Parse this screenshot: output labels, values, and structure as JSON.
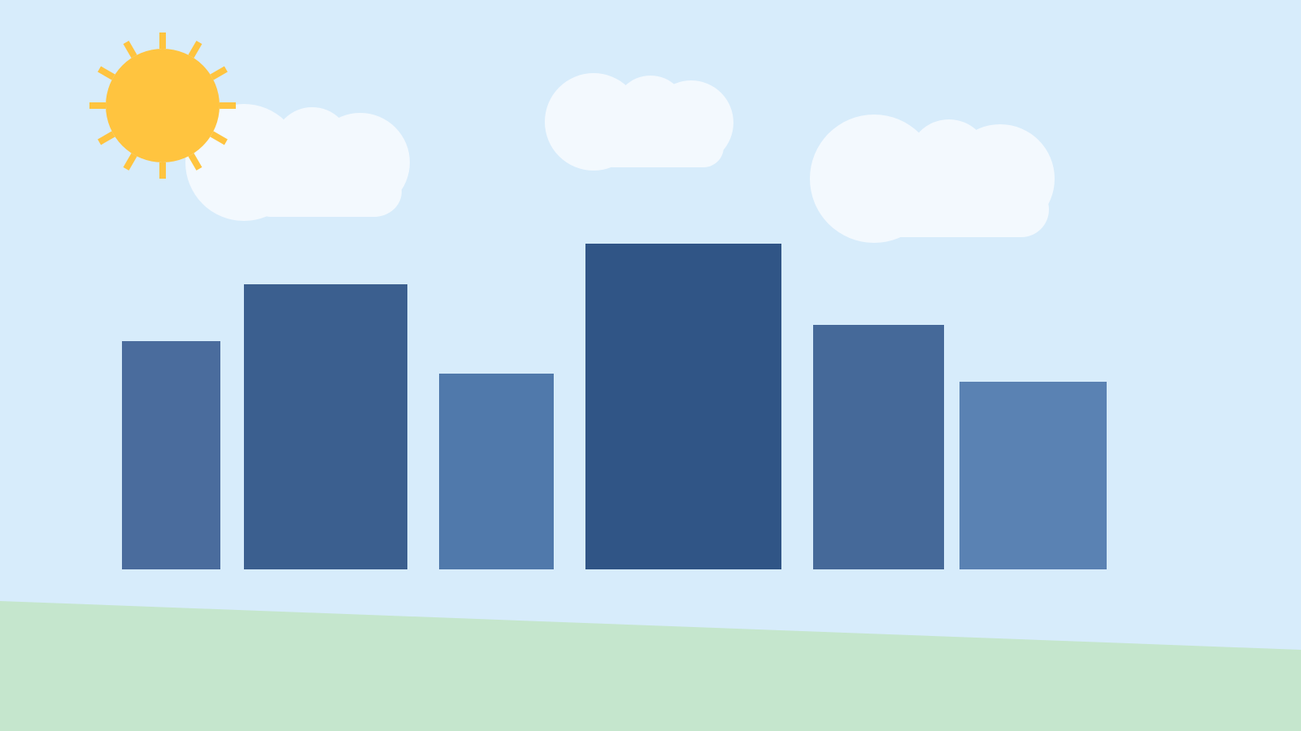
{
  "colors": {
    "sky": "#d7ecfb",
    "ground": "#c5e6cd",
    "sun": "#ffc43f",
    "cloud": "#f3f9fe",
    "buildings": [
      "#4a6c9d",
      "#3b5f8f",
      "#5079ab",
      "#305586",
      "#456999",
      "#5a82b3"
    ]
  },
  "scene": {
    "buildings": [
      {
        "name": "building-1"
      },
      {
        "name": "building-2"
      },
      {
        "name": "building-3"
      },
      {
        "name": "building-4"
      },
      {
        "name": "building-5"
      },
      {
        "name": "building-6"
      }
    ],
    "clouds": [
      {
        "name": "cloud-left"
      },
      {
        "name": "cloud-center"
      },
      {
        "name": "cloud-right"
      }
    ]
  }
}
